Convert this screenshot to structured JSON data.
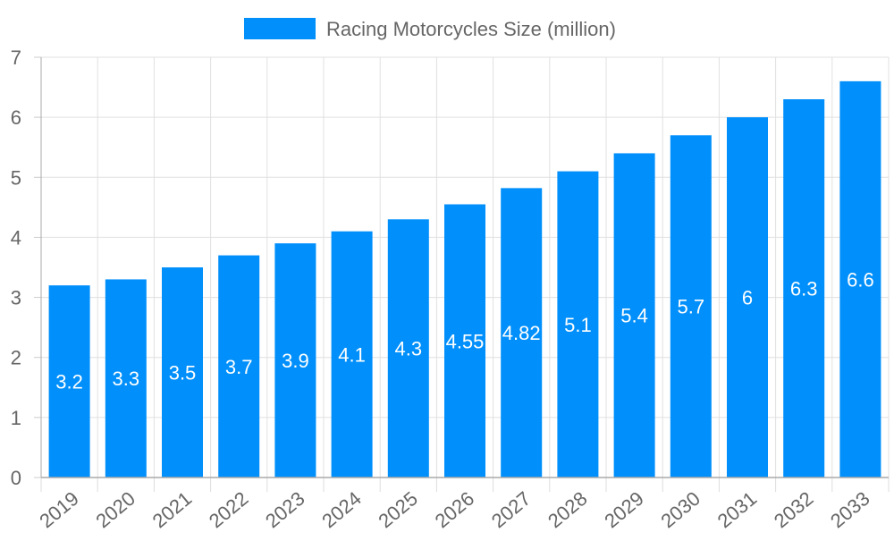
{
  "chart_data": {
    "type": "bar",
    "title": "",
    "xlabel": "",
    "ylabel": "",
    "categories": [
      "2019",
      "2020",
      "2021",
      "2022",
      "2023",
      "2024",
      "2025",
      "2026",
      "2027",
      "2028",
      "2029",
      "2030",
      "2031",
      "2032",
      "2033"
    ],
    "series": [
      {
        "name": "Racing Motorcycles Size (million)",
        "values": [
          3.2,
          3.3,
          3.5,
          3.7,
          3.9,
          4.1,
          4.3,
          4.55,
          4.82,
          5.1,
          5.4,
          5.7,
          6,
          6.3,
          6.6
        ],
        "color": "#008ffb"
      }
    ],
    "ylim": [
      0,
      7
    ],
    "yticks": [
      0,
      1,
      2,
      3,
      4,
      5,
      6,
      7
    ],
    "grid": true,
    "legend": "top-center",
    "data_labels": "inside-center"
  }
}
